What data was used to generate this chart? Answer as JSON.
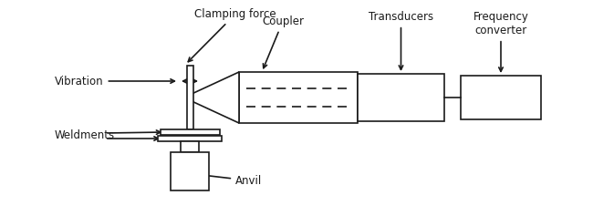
{
  "bg_color": "#ffffff",
  "line_color": "#1a1a1a",
  "fig_width": 6.5,
  "fig_height": 2.37,
  "dpi": 100,
  "labels": {
    "clamping_force": "Clamping force",
    "coupler": "Coupler",
    "vibration": "Vibration",
    "weldments": "Weldments",
    "anvil": "Anvil",
    "transducers": "Transducers",
    "frequency_converter": "Frequency\nconverter"
  },
  "font_size": 8.5
}
